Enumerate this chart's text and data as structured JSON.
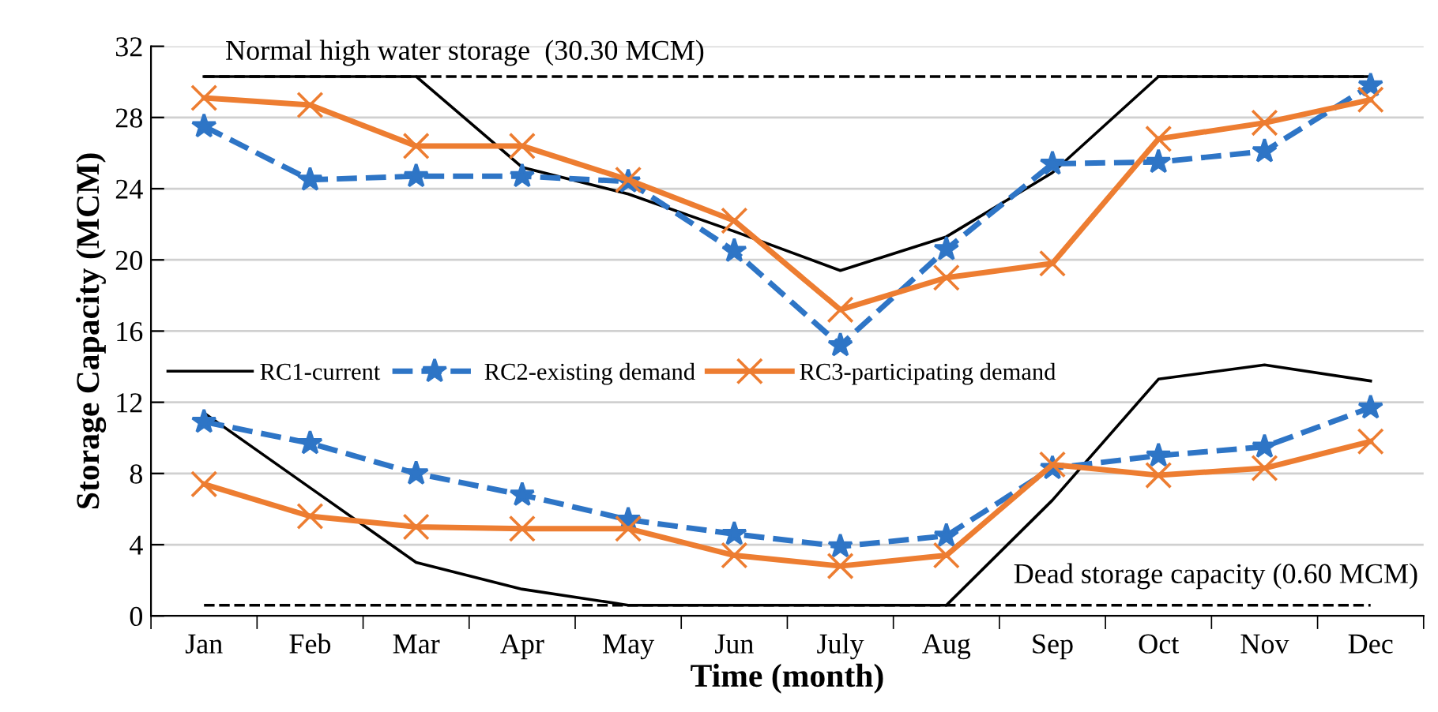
{
  "chart_data": {
    "type": "line",
    "xlabel": "Time (month)",
    "ylabel": "Storage Capacity (MCM)",
    "categories": [
      "Jan",
      "Feb",
      "Mar",
      "Apr",
      "May",
      "Jun",
      "July",
      "Aug",
      "Sep",
      "Oct",
      "Nov",
      "Dec"
    ],
    "series": [
      {
        "name": "RC1-current",
        "color": "#000000",
        "marker": "none",
        "line_style": "solid",
        "values": [
          30.3,
          30.3,
          30.3,
          25.2,
          23.7,
          21.6,
          19.4,
          21.3,
          24.9,
          30.3,
          30.3,
          30.3
        ]
      },
      {
        "name": "RC2-existing demand",
        "color": "#2e75c6",
        "marker": "star",
        "line_style": "dashed",
        "values": [
          27.5,
          24.5,
          24.7,
          24.7,
          24.4,
          20.5,
          15.2,
          20.6,
          25.4,
          25.5,
          26.1,
          29.8
        ]
      },
      {
        "name": "RC3-participating demand",
        "color": "#ed7d31",
        "marker": "cross",
        "line_style": "solid",
        "values": [
          29.1,
          28.7,
          26.4,
          26.4,
          24.5,
          22.2,
          17.2,
          19.0,
          19.8,
          26.8,
          27.7,
          29.0
        ]
      },
      {
        "color": "#000000",
        "marker": "none",
        "line_style": "solid",
        "values": [
          11.4,
          7.2,
          3.0,
          1.5,
          0.6,
          0.6,
          0.6,
          0.6,
          6.5,
          13.3,
          14.1,
          13.2
        ]
      },
      {
        "color": "#2e75c6",
        "marker": "star",
        "line_style": "dashed",
        "values": [
          10.9,
          9.7,
          8.0,
          6.8,
          5.4,
          4.6,
          3.9,
          4.5,
          8.3,
          9.0,
          9.5,
          11.7
        ]
      },
      {
        "color": "#ed7d31",
        "marker": "cross",
        "line_style": "solid",
        "values": [
          7.4,
          5.6,
          5.0,
          4.9,
          4.9,
          3.4,
          2.8,
          3.4,
          8.5,
          7.9,
          8.3,
          9.8
        ]
      }
    ],
    "ylim": [
      0,
      32
    ],
    "yticks": [
      0,
      4,
      8,
      12,
      16,
      20,
      24,
      28,
      32
    ],
    "grid": "y",
    "legend": "center left",
    "ref_lines": [
      {
        "axis": "y",
        "value": 30.3,
        "label": "Normal high water storage  (30.30 MCM)",
        "color": "#000000",
        "line_style": "dashed"
      },
      {
        "axis": "y",
        "value": 0.6,
        "label": "Dead storage capacity (0.60 MCM)",
        "color": "#000000",
        "line_style": "dashed"
      }
    ]
  }
}
